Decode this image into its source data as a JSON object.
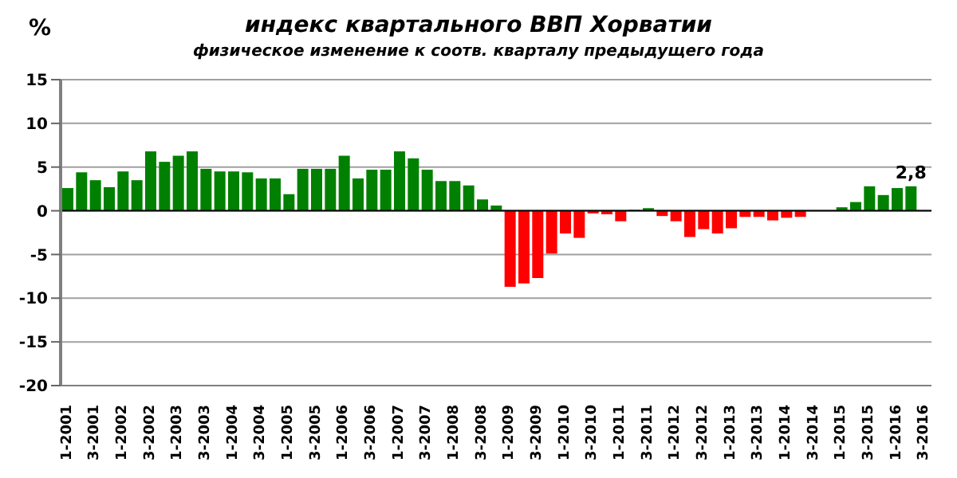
{
  "chart_data": {
    "type": "bar",
    "title": "индекс квартального ВВП Хорватии",
    "subtitle": "физическое изменение к соотв. кварталу предыдущего года",
    "ylabel": "%",
    "categories": [
      "1-2001",
      null,
      "3-2001",
      null,
      "1-2002",
      null,
      "3-2002",
      null,
      "1-2003",
      null,
      "3-2003",
      null,
      "1-2004",
      null,
      "3-2004",
      null,
      "1-2005",
      null,
      "3-2005",
      null,
      "1-2006",
      null,
      "3-2006",
      null,
      "1-2007",
      null,
      "3-2007",
      null,
      "1-2008",
      null,
      "3-2008",
      null,
      "1-2009",
      null,
      "3-2009",
      null,
      "1-2010",
      null,
      "3-2010",
      null,
      "1-2011",
      null,
      "3-2011",
      null,
      "1-2012",
      null,
      "3-2012",
      null,
      "1-2013",
      null,
      "3-2013",
      null,
      "1-2014",
      null,
      "3-2014",
      null,
      "1-2015",
      null,
      "3-2015",
      null,
      "1-2016",
      null,
      "3-2016"
    ],
    "values": [
      2.6,
      4.4,
      3.5,
      2.7,
      4.5,
      3.5,
      6.8,
      5.6,
      6.3,
      6.8,
      4.8,
      4.5,
      4.5,
      4.4,
      3.7,
      3.7,
      1.9,
      4.8,
      4.8,
      4.8,
      6.3,
      3.7,
      4.7,
      4.7,
      6.8,
      6.0,
      4.7,
      3.4,
      3.4,
      2.9,
      1.3,
      0.6,
      -8.7,
      -8.3,
      -7.7,
      -4.9,
      -2.6,
      -3.1,
      -0.3,
      -0.4,
      -1.2,
      0.1,
      0.3,
      -0.6,
      -1.2,
      -3.0,
      -2.1,
      -2.6,
      -2.0,
      -0.7,
      -0.7,
      -1.1,
      -0.8,
      -0.7,
      0,
      0,
      0.4,
      1.0,
      2.8,
      1.8,
      2.6,
      2.8,
      null
    ],
    "colors": [
      "#008000",
      "#008000",
      "#008000",
      "#008000",
      "#008000",
      "#008000",
      "#008000",
      "#008000",
      "#008000",
      "#008000",
      "#008000",
      "#008000",
      "#008000",
      "#008000",
      "#008000",
      "#008000",
      "#008000",
      "#008000",
      "#008000",
      "#008000",
      "#008000",
      "#008000",
      "#008000",
      "#008000",
      "#008000",
      "#008000",
      "#008000",
      "#008000",
      "#008000",
      "#008000",
      "#008000",
      "#008000",
      "#ff0000",
      "#ff0000",
      "#ff0000",
      "#ff0000",
      "#ff0000",
      "#ff0000",
      "#ff0000",
      "#ff0000",
      "#ff0000",
      "#008000",
      "#008000",
      "#ff0000",
      "#ff0000",
      "#ff0000",
      "#ff0000",
      "#ff0000",
      "#ff0000",
      "#ff0000",
      "#ff0000",
      "#ff0000",
      "#ff0000",
      "#ff0000",
      "#008000",
      "#008000",
      "#008000",
      "#008000",
      "#008000",
      "#008000",
      "#008000",
      "#008000",
      "#008000"
    ],
    "value_labels": [
      null,
      null,
      null,
      null,
      null,
      null,
      null,
      null,
      null,
      null,
      null,
      null,
      null,
      null,
      null,
      null,
      null,
      null,
      null,
      null,
      null,
      null,
      null,
      null,
      null,
      null,
      null,
      null,
      null,
      null,
      null,
      null,
      null,
      null,
      null,
      null,
      null,
      null,
      null,
      null,
      null,
      null,
      null,
      null,
      null,
      null,
      null,
      null,
      null,
      null,
      null,
      null,
      null,
      null,
      null,
      null,
      null,
      null,
      null,
      null,
      null,
      "2,8",
      null
    ],
    "ylim": [
      -20,
      15
    ],
    "yticks": [
      -20,
      -15,
      -10,
      -5,
      0,
      5,
      10,
      15
    ],
    "grid": "y"
  }
}
